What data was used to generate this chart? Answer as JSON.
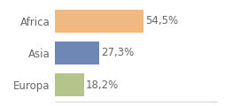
{
  "categories": [
    "Africa",
    "Asia",
    "Europa"
  ],
  "values": [
    54.5,
    27.3,
    18.2
  ],
  "labels": [
    "54,5%",
    "27,3%",
    "18,2%"
  ],
  "bar_colors": [
    "#f0b982",
    "#6e87b5",
    "#b5c48a"
  ],
  "xlim": [
    0,
    100
  ],
  "background_color": "#ffffff",
  "label_fontsize": 8.5,
  "tick_fontsize": 8.5,
  "bar_height": 0.72,
  "figsize": [
    2.8,
    1.2
  ],
  "dpi": 100
}
